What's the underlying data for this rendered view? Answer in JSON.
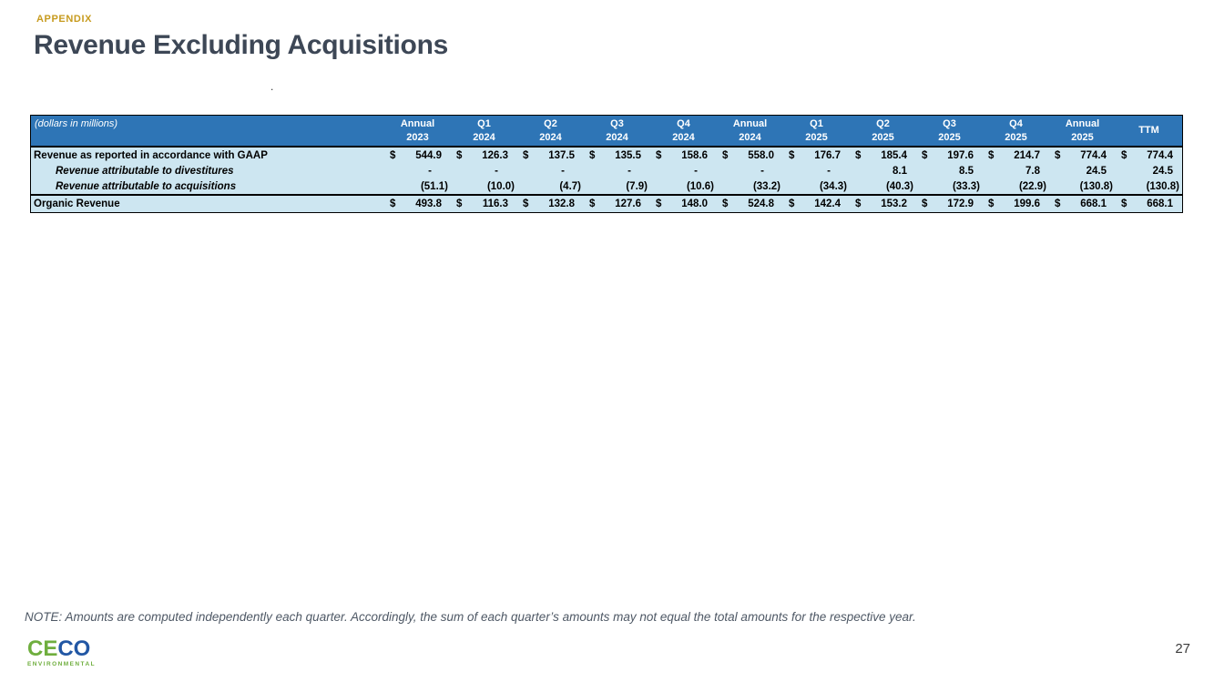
{
  "slide": {
    "eyebrow": "APPENDIX",
    "title": "Revenue Excluding Acquisitions",
    "stray_dot": ".",
    "note": "NOTE: Amounts are computed independently each quarter. Accordingly, the sum of each quarter’s amounts may not equal the total amounts for the respective year.",
    "page_number": "27"
  },
  "logo": {
    "part1": "CE",
    "part2": "CO",
    "subtext": "ENVIRONMENTAL"
  },
  "colors": {
    "header_blue": "#2E75B6",
    "body_light_blue": "#CDE6F1",
    "accent_gold": "#C79B1F",
    "title_color": "#3D4756",
    "logo_green": "#6FAE3E",
    "logo_blue": "#2257A4"
  },
  "table": {
    "unit_label": "(dollars in millions)",
    "currency": "$",
    "columns": [
      {
        "line1": "Annual",
        "line2": "2023"
      },
      {
        "line1": "Q1",
        "line2": "2024"
      },
      {
        "line1": "Q2",
        "line2": "2024"
      },
      {
        "line1": "Q3",
        "line2": "2024"
      },
      {
        "line1": "Q4",
        "line2": "2024"
      },
      {
        "line1": "Annual",
        "line2": "2024"
      },
      {
        "line1": "Q1",
        "line2": "2025"
      },
      {
        "line1": "Q2",
        "line2": "2025"
      },
      {
        "line1": "Q3",
        "line2": "2025"
      },
      {
        "line1": "Q4",
        "line2": "2025"
      },
      {
        "line1": "Annual",
        "line2": "2025"
      },
      {
        "line1": "",
        "line2": "TTM"
      }
    ],
    "rows": [
      {
        "label": "Revenue as reported in accordance with GAAP",
        "style": "main",
        "dollar": true,
        "values": [
          "544.9",
          "126.3",
          "137.5",
          "135.5",
          "158.6",
          "558.0",
          "176.7",
          "185.4",
          "197.6",
          "214.7",
          "774.4",
          "774.4"
        ]
      },
      {
        "label": "Revenue attributable to divestitures",
        "style": "indent",
        "dollar": false,
        "values": [
          "-",
          "-",
          "-",
          "-",
          "-",
          "-",
          "-",
          "8.1",
          "8.5",
          "7.8",
          "24.5",
          "24.5"
        ]
      },
      {
        "label": "Revenue attributable to acquisitions",
        "style": "indent",
        "dollar": false,
        "values": [
          "(51.1)",
          "(10.0)",
          "(4.7)",
          "(7.9)",
          "(10.6)",
          "(33.2)",
          "(34.3)",
          "(40.3)",
          "(33.3)",
          "(22.9)",
          "(130.8)",
          "(130.8)"
        ]
      },
      {
        "label": "Organic Revenue",
        "style": "total",
        "dollar": true,
        "values": [
          "493.8",
          "116.3",
          "132.8",
          "127.6",
          "148.0",
          "524.8",
          "142.4",
          "153.2",
          "172.9",
          "199.6",
          "668.1",
          "668.1"
        ]
      }
    ]
  }
}
